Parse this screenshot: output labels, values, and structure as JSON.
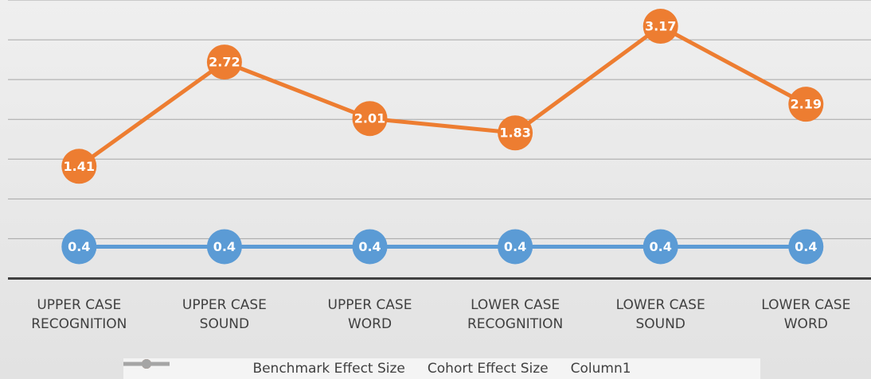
{
  "chart_data": {
    "type": "line",
    "categories": [
      "UPPER CASE RECOGNITION",
      "UPPER CASE SOUND",
      "UPPER CASE WORD",
      "LOWER CASE RECOGNITION",
      "LOWER CASE SOUND",
      "LOWER CASE WORD"
    ],
    "series": [
      {
        "name": "Benchmark Effect Size",
        "color": "#5b9bd5",
        "values": [
          0.4,
          0.4,
          0.4,
          0.4,
          0.4,
          0.4
        ]
      },
      {
        "name": "Cohort Effect Size",
        "color": "#ed7d31",
        "values": [
          1.41,
          2.72,
          2.01,
          1.83,
          3.17,
          2.19
        ]
      },
      {
        "name": "Column1",
        "color": "#a5a5a5",
        "values": [
          null,
          null,
          null,
          null,
          null,
          null
        ]
      }
    ],
    "ylim": [
      0,
      3.5
    ],
    "yticks": [
      0,
      0.5,
      1,
      1.5,
      2,
      2.5,
      3,
      3.5
    ],
    "grid": true,
    "legend": "bottom"
  }
}
